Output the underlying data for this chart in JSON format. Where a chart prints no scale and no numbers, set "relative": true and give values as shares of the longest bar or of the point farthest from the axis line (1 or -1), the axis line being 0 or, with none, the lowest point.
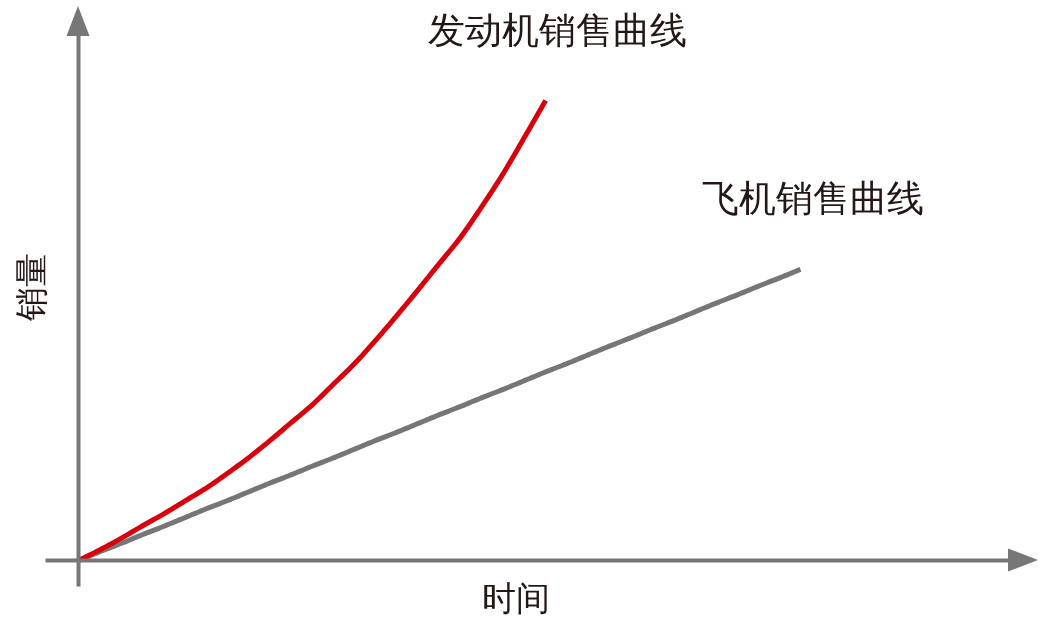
{
  "chart_data": {
    "type": "line",
    "relative": true,
    "xlabel": "时间",
    "ylabel": "销量",
    "categories": [
      null,
      null,
      null,
      null,
      null,
      null,
      null,
      null,
      null,
      null,
      null,
      null,
      null,
      null,
      null,
      null,
      null,
      null,
      null,
      null,
      null,
      null,
      null,
      null,
      null,
      null,
      null,
      null,
      null,
      null,
      null,
      null,
      null,
      null,
      null
    ],
    "series": [
      {
        "name": "发动机销售曲线",
        "color": "#d9000d",
        "values": [
          0,
          0.023,
          0.048,
          0.075,
          0.101,
          0.129,
          0.157,
          0.189,
          0.223,
          0.26,
          0.299,
          0.338,
          0.383,
          0.428,
          0.479,
          0.533,
          0.589,
          0.646,
          0.703,
          0.77,
          0.841,
          0.92,
          1.0,
          null,
          null,
          null,
          null,
          null,
          null,
          null,
          null,
          null,
          null,
          null,
          null
        ]
      },
      {
        "name": "飞机销售曲线",
        "color": "#767676",
        "values": [
          0,
          0.019,
          0.037,
          0.056,
          0.074,
          0.093,
          0.112,
          0.13,
          0.149,
          0.168,
          0.186,
          0.205,
          0.223,
          0.242,
          0.261,
          0.279,
          0.298,
          0.317,
          0.335,
          0.354,
          0.372,
          0.391,
          0.41,
          0.428,
          0.447,
          0.466,
          0.484,
          0.503,
          0.521,
          0.54,
          0.559,
          0.577,
          0.596,
          0.614,
          0.633
        ]
      }
    ]
  }
}
